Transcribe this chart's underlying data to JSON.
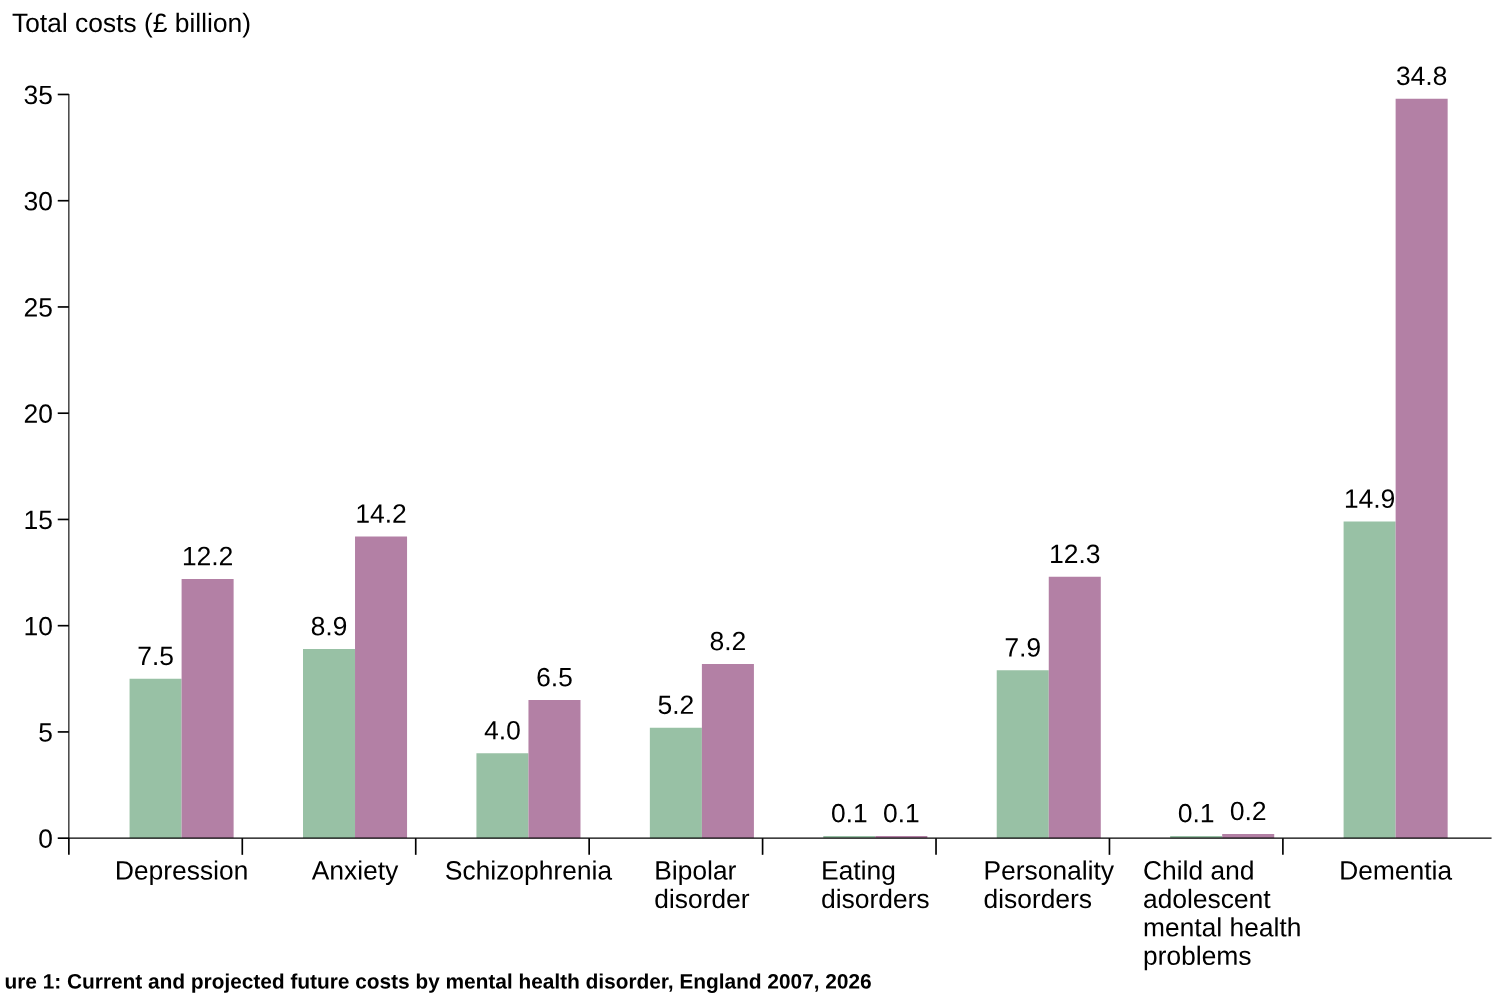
{
  "chart_data": {
    "type": "bar",
    "ylabel": "Total costs (£ billion)",
    "categories": [
      "Depression",
      "Anxiety",
      "Schizophrenia",
      "Bipolar\ndisorder",
      "Eating\ndisorders",
      "Personality\ndisorders",
      "Child and\nadolescent\nmental health\nproblems",
      "Dementia"
    ],
    "series": [
      {
        "color": "#98c1a5",
        "values": [
          7.5,
          8.9,
          4.0,
          5.2,
          0.1,
          7.9,
          0.1,
          14.9
        ],
        "value_labels": [
          "7.5",
          "8.9",
          "4.0",
          "5.2",
          "0.1",
          "7.9",
          "0.1",
          "14.9"
        ]
      },
      {
        "color": "#b380a5",
        "values": [
          12.2,
          14.2,
          6.5,
          8.2,
          0.1,
          12.3,
          0.2,
          34.8
        ],
        "value_labels": [
          "12.2",
          "14.2",
          "6.5",
          "8.2",
          "0.1",
          "12.3",
          "0.2",
          "34.8"
        ]
      }
    ],
    "ylim": [
      0,
      35
    ],
    "yticks": [
      0,
      5,
      10,
      15,
      20,
      25,
      30,
      35
    ],
    "grid": false,
    "legend": false,
    "annotations": [
      "ure 1: Current and projected future costs by mental health disorder, England 2007, 2026"
    ]
  }
}
